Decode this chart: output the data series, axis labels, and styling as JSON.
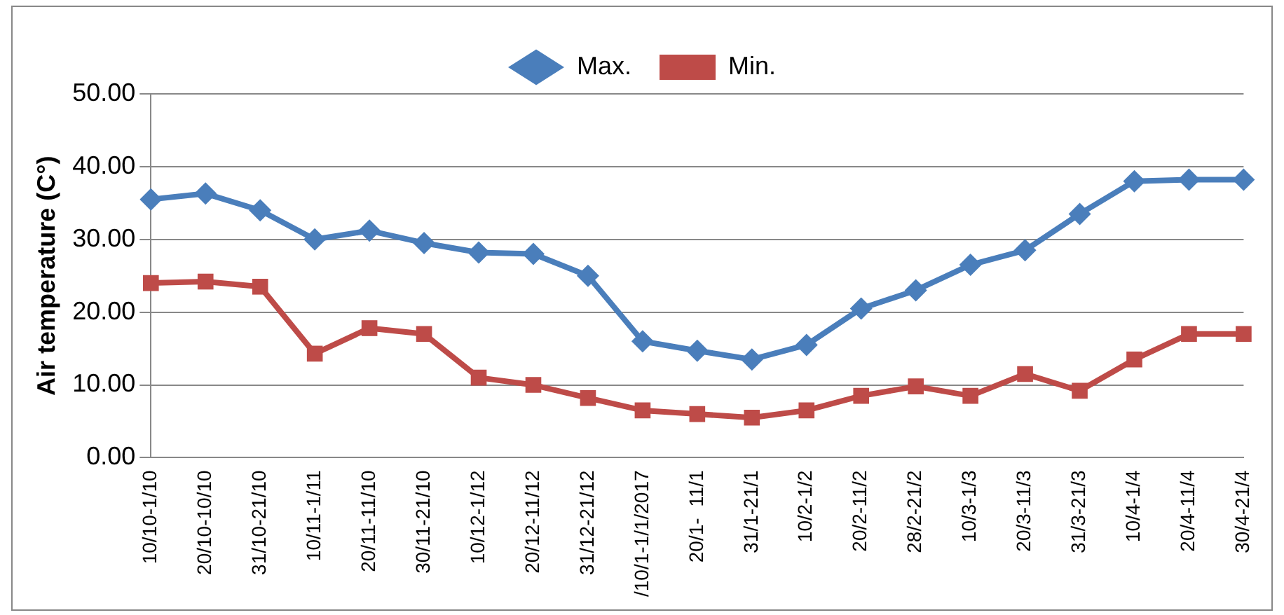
{
  "chart_data": {
    "type": "line",
    "ylabel": "Air temperature (C°)",
    "categories": [
      "10/10-1/10",
      "20/10-10/10",
      "31/10-21/10",
      "10/11-1/11",
      "20/11-11/10",
      "30/11-21/10",
      "10/12-1/12",
      "20/12-11/12",
      "31/12-21/12",
      "/10/1-1/1/2017",
      "20/1-  11/1",
      "31/1-21/1",
      "10/2-1/2",
      "20/2-11/2",
      "28/2-21/2",
      "10/3-1/3",
      "20/3-11/3",
      "31/3-21/3",
      "10/4-1/4",
      "20/4-11/4",
      "30/4-21/4"
    ],
    "series": [
      {
        "name": "Max.",
        "color": "#4a7ebb",
        "marker": "diamond",
        "values": [
          35.5,
          36.3,
          34,
          30,
          31.2,
          29.5,
          28.2,
          28,
          25,
          16,
          14.7,
          13.5,
          15.5,
          20.5,
          23,
          26.5,
          28.5,
          33.5,
          38,
          38.2,
          38.2
        ]
      },
      {
        "name": "Min.",
        "color": "#be4b48",
        "marker": "square",
        "values": [
          24,
          24.2,
          23.5,
          14.3,
          17.8,
          17,
          11,
          10,
          8.2,
          6.5,
          6,
          5.5,
          6.5,
          8.5,
          9.8,
          8.5,
          11.5,
          9.2,
          13.5,
          17,
          17
        ]
      }
    ],
    "ylim": [
      0,
      50
    ],
    "yticks": [
      {
        "value": 0,
        "label": "0.00"
      },
      {
        "value": 10,
        "label": "10.00"
      },
      {
        "value": 20,
        "label": "20.00"
      },
      {
        "value": 30,
        "label": "30.00"
      },
      {
        "value": 40,
        "label": "40.00"
      },
      {
        "value": 50,
        "label": "50.00"
      }
    ],
    "grid": "y",
    "legend": "top"
  }
}
